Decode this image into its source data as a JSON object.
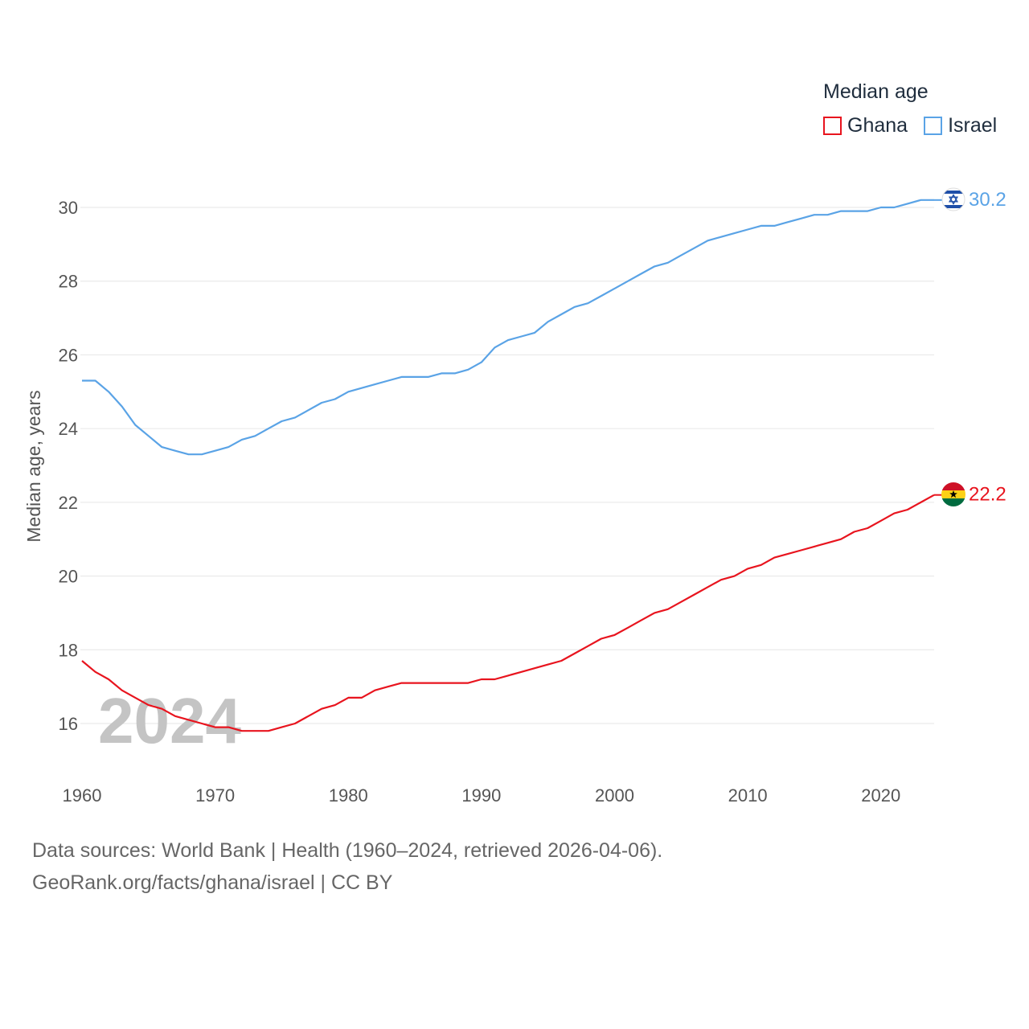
{
  "legend": {
    "title": "Median age",
    "items": [
      {
        "label": "Ghana",
        "color": "#e8141e"
      },
      {
        "label": "Israel",
        "color": "#5aa3e6"
      }
    ]
  },
  "footer": {
    "line1": "Data sources: World Bank | Health (1960–2024, retrieved 2026-04-06).",
    "line2": "GeoRank.org/facts/ghana/israel | CC BY"
  },
  "chart_data": {
    "type": "line",
    "title": "Median age",
    "ylabel": "Median age, years",
    "xlabel": "",
    "xlim": [
      1960,
      2024
    ],
    "ylim": [
      14.8,
      30.7
    ],
    "yticks": [
      16,
      18,
      20,
      22,
      24,
      26,
      28,
      30
    ],
    "xticks": [
      1960,
      1970,
      1980,
      1990,
      2000,
      2010,
      2020
    ],
    "grid": true,
    "year_label": "2024",
    "x": [
      1960,
      1961,
      1962,
      1963,
      1964,
      1965,
      1966,
      1967,
      1968,
      1969,
      1970,
      1971,
      1972,
      1973,
      1974,
      1975,
      1976,
      1977,
      1978,
      1979,
      1980,
      1981,
      1982,
      1983,
      1984,
      1985,
      1986,
      1987,
      1988,
      1989,
      1990,
      1991,
      1992,
      1993,
      1994,
      1995,
      1996,
      1997,
      1998,
      1999,
      2000,
      2001,
      2002,
      2003,
      2004,
      2005,
      2006,
      2007,
      2008,
      2009,
      2010,
      2011,
      2012,
      2013,
      2014,
      2015,
      2016,
      2017,
      2018,
      2019,
      2020,
      2021,
      2022,
      2023,
      2024
    ],
    "series": [
      {
        "name": "Ghana",
        "color": "#e8141e",
        "end_label": "22.2",
        "values": [
          17.7,
          17.4,
          17.2,
          16.9,
          16.7,
          16.5,
          16.4,
          16.2,
          16.1,
          16.0,
          15.9,
          15.9,
          15.8,
          15.8,
          15.8,
          15.9,
          16.0,
          16.2,
          16.4,
          16.5,
          16.7,
          16.7,
          16.9,
          17.0,
          17.1,
          17.1,
          17.1,
          17.1,
          17.1,
          17.1,
          17.2,
          17.2,
          17.3,
          17.4,
          17.5,
          17.6,
          17.7,
          17.9,
          18.1,
          18.3,
          18.4,
          18.6,
          18.8,
          19.0,
          19.1,
          19.3,
          19.5,
          19.7,
          19.9,
          20.0,
          20.2,
          20.3,
          20.5,
          20.6,
          20.7,
          20.8,
          20.9,
          21.0,
          21.2,
          21.3,
          21.5,
          21.7,
          21.8,
          22.0,
          22.2
        ]
      },
      {
        "name": "Israel",
        "color": "#5aa3e6",
        "end_label": "30.2",
        "values": [
          25.3,
          25.3,
          25.0,
          24.6,
          24.1,
          23.8,
          23.5,
          23.4,
          23.3,
          23.3,
          23.4,
          23.5,
          23.7,
          23.8,
          24.0,
          24.2,
          24.3,
          24.5,
          24.7,
          24.8,
          25.0,
          25.1,
          25.2,
          25.3,
          25.4,
          25.4,
          25.4,
          25.5,
          25.5,
          25.6,
          25.8,
          26.2,
          26.4,
          26.5,
          26.6,
          26.9,
          27.1,
          27.3,
          27.4,
          27.6,
          27.8,
          28.0,
          28.2,
          28.4,
          28.5,
          28.7,
          28.9,
          29.1,
          29.2,
          29.3,
          29.4,
          29.5,
          29.5,
          29.6,
          29.7,
          29.8,
          29.8,
          29.9,
          29.9,
          29.9,
          30.0,
          30.0,
          30.1,
          30.2,
          30.2
        ]
      }
    ]
  }
}
